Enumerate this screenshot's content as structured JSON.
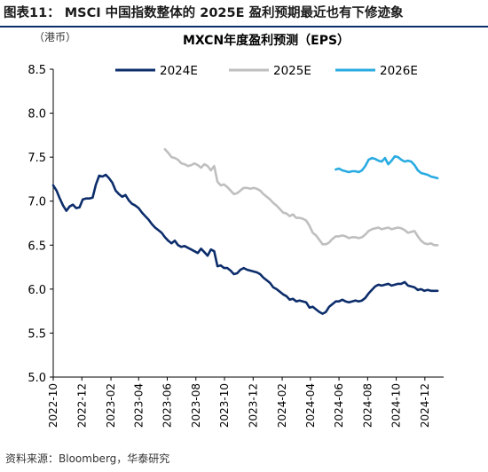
{
  "figure": {
    "caption": "图表11：  MSCI 中国指数整体的 2025E 盈利预期最近也有下修迹象",
    "source": "资料来源：Bloomberg，华泰研究"
  },
  "chart_data": {
    "type": "line",
    "title": "MXCN年度盈利预测（EPS）",
    "ylabel": "（港币）",
    "xlabel": "",
    "ylim": [
      5.0,
      8.5
    ],
    "yticks": [
      "5.0",
      "5.5",
      "6.0",
      "6.5",
      "7.0",
      "7.5",
      "8.0",
      "8.5"
    ],
    "xlim": [
      "2022-10-01",
      "2025-01-10"
    ],
    "xticks": [
      "2022-10",
      "2022-12",
      "2023-02",
      "2023-04",
      "2023-06",
      "2023-08",
      "2023-10",
      "2023-12",
      "2024-02",
      "2024-04",
      "2024-06",
      "2024-08",
      "2024-10",
      "2024-12"
    ],
    "grid": false,
    "legend_position": "top",
    "series": [
      {
        "name": "2024E",
        "color": "#0c2d6b",
        "points": [
          [
            "2022-10-01",
            7.18
          ],
          [
            "2022-10-08",
            7.12
          ],
          [
            "2022-10-15",
            7.03
          ],
          [
            "2022-10-22",
            6.95
          ],
          [
            "2022-10-29",
            6.89
          ],
          [
            "2022-11-05",
            6.94
          ],
          [
            "2022-11-12",
            6.96
          ],
          [
            "2022-11-19",
            6.92
          ],
          [
            "2022-11-26",
            6.93
          ],
          [
            "2022-12-03",
            7.02
          ],
          [
            "2022-12-10",
            7.03
          ],
          [
            "2022-12-17",
            7.03
          ],
          [
            "2022-12-24",
            7.04
          ],
          [
            "2022-12-31",
            7.19
          ],
          [
            "2023-01-07",
            7.29
          ],
          [
            "2023-01-14",
            7.28
          ],
          [
            "2023-01-21",
            7.3
          ],
          [
            "2023-01-28",
            7.26
          ],
          [
            "2023-02-04",
            7.21
          ],
          [
            "2023-02-11",
            7.12
          ],
          [
            "2023-02-18",
            7.08
          ],
          [
            "2023-02-25",
            7.05
          ],
          [
            "2023-03-04",
            7.07
          ],
          [
            "2023-03-11",
            7.01
          ],
          [
            "2023-03-18",
            6.97
          ],
          [
            "2023-03-25",
            6.95
          ],
          [
            "2023-04-01",
            6.92
          ],
          [
            "2023-04-08",
            6.87
          ],
          [
            "2023-04-15",
            6.83
          ],
          [
            "2023-04-22",
            6.79
          ],
          [
            "2023-04-29",
            6.74
          ],
          [
            "2023-05-06",
            6.7
          ],
          [
            "2023-05-13",
            6.67
          ],
          [
            "2023-05-20",
            6.64
          ],
          [
            "2023-05-27",
            6.59
          ],
          [
            "2023-06-03",
            6.55
          ],
          [
            "2023-06-10",
            6.52
          ],
          [
            "2023-06-17",
            6.55
          ],
          [
            "2023-06-24",
            6.5
          ],
          [
            "2023-07-01",
            6.48
          ],
          [
            "2023-07-08",
            6.49
          ],
          [
            "2023-07-15",
            6.47
          ],
          [
            "2023-07-22",
            6.45
          ],
          [
            "2023-07-29",
            6.43
          ],
          [
            "2023-08-05",
            6.41
          ],
          [
            "2023-08-12",
            6.46
          ],
          [
            "2023-08-19",
            6.42
          ],
          [
            "2023-08-26",
            6.38
          ],
          [
            "2023-09-02",
            6.45
          ],
          [
            "2023-09-09",
            6.43
          ],
          [
            "2023-09-16",
            6.26
          ],
          [
            "2023-09-23",
            6.27
          ],
          [
            "2023-09-30",
            6.24
          ],
          [
            "2023-10-07",
            6.24
          ],
          [
            "2023-10-14",
            6.21
          ],
          [
            "2023-10-21",
            6.17
          ],
          [
            "2023-10-28",
            6.18
          ],
          [
            "2023-11-04",
            6.22
          ],
          [
            "2023-11-11",
            6.24
          ],
          [
            "2023-11-18",
            6.22
          ],
          [
            "2023-11-25",
            6.21
          ],
          [
            "2023-12-02",
            6.2
          ],
          [
            "2023-12-09",
            6.19
          ],
          [
            "2023-12-16",
            6.17
          ],
          [
            "2023-12-23",
            6.13
          ],
          [
            "2023-12-30",
            6.1
          ],
          [
            "2024-01-06",
            6.07
          ],
          [
            "2024-01-13",
            6.02
          ],
          [
            "2024-01-20",
            6.0
          ],
          [
            "2024-01-27",
            5.97
          ],
          [
            "2024-02-03",
            5.94
          ],
          [
            "2024-02-10",
            5.92
          ],
          [
            "2024-02-17",
            5.88
          ],
          [
            "2024-02-24",
            5.89
          ],
          [
            "2024-03-02",
            5.86
          ],
          [
            "2024-03-09",
            5.87
          ],
          [
            "2024-03-16",
            5.86
          ],
          [
            "2024-03-23",
            5.85
          ],
          [
            "2024-03-30",
            5.79
          ],
          [
            "2024-04-06",
            5.8
          ],
          [
            "2024-04-13",
            5.77
          ],
          [
            "2024-04-20",
            5.74
          ],
          [
            "2024-04-27",
            5.72
          ],
          [
            "2024-05-04",
            5.74
          ],
          [
            "2024-05-11",
            5.8
          ],
          [
            "2024-05-18",
            5.83
          ],
          [
            "2024-05-25",
            5.86
          ],
          [
            "2024-06-01",
            5.86
          ],
          [
            "2024-06-08",
            5.88
          ],
          [
            "2024-06-15",
            5.86
          ],
          [
            "2024-06-22",
            5.85
          ],
          [
            "2024-06-29",
            5.86
          ],
          [
            "2024-07-06",
            5.87
          ],
          [
            "2024-07-13",
            5.86
          ],
          [
            "2024-07-20",
            5.87
          ],
          [
            "2024-07-27",
            5.9
          ],
          [
            "2024-08-03",
            5.95
          ],
          [
            "2024-08-10",
            5.99
          ],
          [
            "2024-08-17",
            6.03
          ],
          [
            "2024-08-24",
            6.05
          ],
          [
            "2024-08-31",
            6.04
          ],
          [
            "2024-09-07",
            6.05
          ],
          [
            "2024-09-14",
            6.06
          ],
          [
            "2024-09-21",
            6.04
          ],
          [
            "2024-09-28",
            6.05
          ],
          [
            "2024-10-05",
            6.06
          ],
          [
            "2024-10-12",
            6.06
          ],
          [
            "2024-10-19",
            6.08
          ],
          [
            "2024-10-26",
            6.04
          ],
          [
            "2024-11-02",
            6.03
          ],
          [
            "2024-11-09",
            6.02
          ],
          [
            "2024-11-16",
            5.99
          ],
          [
            "2024-11-23",
            6.0
          ],
          [
            "2024-11-30",
            5.98
          ],
          [
            "2024-12-07",
            5.99
          ],
          [
            "2024-12-14",
            5.98
          ],
          [
            "2024-12-21",
            5.98
          ],
          [
            "2024-12-28",
            5.98
          ]
        ]
      },
      {
        "name": "2025E",
        "color": "#bfbfbf",
        "points": [
          [
            "2023-05-27",
            7.59
          ],
          [
            "2023-06-03",
            7.55
          ],
          [
            "2023-06-10",
            7.5
          ],
          [
            "2023-06-17",
            7.49
          ],
          [
            "2023-06-24",
            7.47
          ],
          [
            "2023-07-01",
            7.43
          ],
          [
            "2023-07-08",
            7.42
          ],
          [
            "2023-07-15",
            7.4
          ],
          [
            "2023-07-22",
            7.41
          ],
          [
            "2023-07-29",
            7.43
          ],
          [
            "2023-08-05",
            7.41
          ],
          [
            "2023-08-12",
            7.38
          ],
          [
            "2023-08-19",
            7.42
          ],
          [
            "2023-08-26",
            7.4
          ],
          [
            "2023-09-02",
            7.35
          ],
          [
            "2023-09-09",
            7.4
          ],
          [
            "2023-09-16",
            7.22
          ],
          [
            "2023-09-23",
            7.18
          ],
          [
            "2023-09-30",
            7.19
          ],
          [
            "2023-10-07",
            7.16
          ],
          [
            "2023-10-14",
            7.12
          ],
          [
            "2023-10-21",
            7.08
          ],
          [
            "2023-10-28",
            7.09
          ],
          [
            "2023-11-04",
            7.12
          ],
          [
            "2023-11-11",
            7.15
          ],
          [
            "2023-11-18",
            7.15
          ],
          [
            "2023-11-25",
            7.14
          ],
          [
            "2023-12-02",
            7.15
          ],
          [
            "2023-12-09",
            7.14
          ],
          [
            "2023-12-16",
            7.12
          ],
          [
            "2023-12-23",
            7.08
          ],
          [
            "2023-12-30",
            7.05
          ],
          [
            "2024-01-06",
            7.02
          ],
          [
            "2024-01-13",
            6.98
          ],
          [
            "2024-01-20",
            6.95
          ],
          [
            "2024-01-27",
            6.91
          ],
          [
            "2024-02-03",
            6.87
          ],
          [
            "2024-02-10",
            6.86
          ],
          [
            "2024-02-17",
            6.83
          ],
          [
            "2024-02-24",
            6.85
          ],
          [
            "2024-03-02",
            6.81
          ],
          [
            "2024-03-09",
            6.81
          ],
          [
            "2024-03-16",
            6.8
          ],
          [
            "2024-03-23",
            6.78
          ],
          [
            "2024-03-30",
            6.72
          ],
          [
            "2024-04-06",
            6.64
          ],
          [
            "2024-04-13",
            6.61
          ],
          [
            "2024-04-20",
            6.56
          ],
          [
            "2024-04-27",
            6.51
          ],
          [
            "2024-05-04",
            6.51
          ],
          [
            "2024-05-11",
            6.53
          ],
          [
            "2024-05-18",
            6.57
          ],
          [
            "2024-05-25",
            6.6
          ],
          [
            "2024-06-01",
            6.6
          ],
          [
            "2024-06-08",
            6.61
          ],
          [
            "2024-06-15",
            6.6
          ],
          [
            "2024-06-22",
            6.58
          ],
          [
            "2024-06-29",
            6.59
          ],
          [
            "2024-07-06",
            6.59
          ],
          [
            "2024-07-13",
            6.58
          ],
          [
            "2024-07-20",
            6.59
          ],
          [
            "2024-07-27",
            6.62
          ],
          [
            "2024-08-03",
            6.66
          ],
          [
            "2024-08-10",
            6.68
          ],
          [
            "2024-08-17",
            6.69
          ],
          [
            "2024-08-24",
            6.7
          ],
          [
            "2024-08-31",
            6.68
          ],
          [
            "2024-09-07",
            6.69
          ],
          [
            "2024-09-14",
            6.7
          ],
          [
            "2024-09-21",
            6.68
          ],
          [
            "2024-09-28",
            6.69
          ],
          [
            "2024-10-05",
            6.7
          ],
          [
            "2024-10-12",
            6.69
          ],
          [
            "2024-10-19",
            6.67
          ],
          [
            "2024-10-26",
            6.64
          ],
          [
            "2024-11-02",
            6.65
          ],
          [
            "2024-11-09",
            6.66
          ],
          [
            "2024-11-16",
            6.6
          ],
          [
            "2024-11-23",
            6.55
          ],
          [
            "2024-11-30",
            6.52
          ],
          [
            "2024-12-07",
            6.51
          ],
          [
            "2024-12-14",
            6.52
          ],
          [
            "2024-12-21",
            6.5
          ],
          [
            "2024-12-28",
            6.5
          ]
        ]
      },
      {
        "name": "2026E",
        "color": "#29abe2",
        "points": [
          [
            "2024-05-25",
            7.36
          ],
          [
            "2024-06-01",
            7.37
          ],
          [
            "2024-06-08",
            7.35
          ],
          [
            "2024-06-15",
            7.34
          ],
          [
            "2024-06-22",
            7.33
          ],
          [
            "2024-06-29",
            7.34
          ],
          [
            "2024-07-06",
            7.34
          ],
          [
            "2024-07-13",
            7.33
          ],
          [
            "2024-07-20",
            7.35
          ],
          [
            "2024-07-27",
            7.4
          ],
          [
            "2024-08-03",
            7.47
          ],
          [
            "2024-08-10",
            7.49
          ],
          [
            "2024-08-17",
            7.48
          ],
          [
            "2024-08-24",
            7.46
          ],
          [
            "2024-08-31",
            7.45
          ],
          [
            "2024-09-07",
            7.49
          ],
          [
            "2024-09-14",
            7.42
          ],
          [
            "2024-09-21",
            7.46
          ],
          [
            "2024-09-28",
            7.51
          ],
          [
            "2024-10-05",
            7.5
          ],
          [
            "2024-10-12",
            7.47
          ],
          [
            "2024-10-19",
            7.45
          ],
          [
            "2024-10-26",
            7.46
          ],
          [
            "2024-11-02",
            7.45
          ],
          [
            "2024-11-09",
            7.41
          ],
          [
            "2024-11-16",
            7.35
          ],
          [
            "2024-11-23",
            7.32
          ],
          [
            "2024-11-30",
            7.31
          ],
          [
            "2024-12-07",
            7.3
          ],
          [
            "2024-12-14",
            7.28
          ],
          [
            "2024-12-21",
            7.27
          ],
          [
            "2024-12-28",
            7.26
          ]
        ]
      }
    ]
  }
}
